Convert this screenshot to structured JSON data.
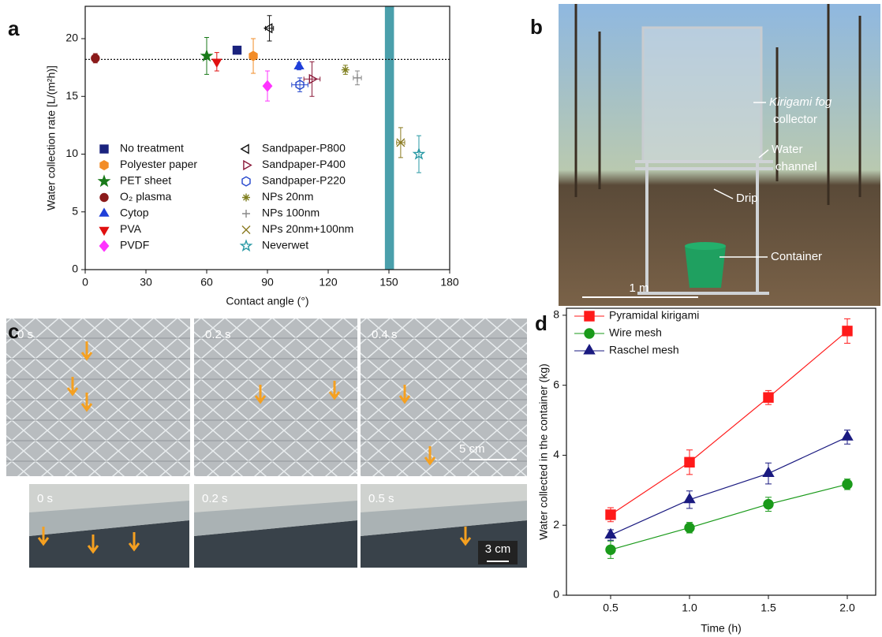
{
  "panel_labels": [
    "a",
    "b",
    "c",
    "d"
  ],
  "chart_data": [
    {
      "type": "scatter",
      "xlabel": "Contact angle (°)",
      "ylabel": "Water collection rate [L/(m²h)]",
      "xlim": [
        0,
        180
      ],
      "xticks": [
        0,
        30,
        60,
        90,
        120,
        150,
        180
      ],
      "ylim": [
        0,
        22.8
      ],
      "yticks": [
        0,
        5,
        10,
        15,
        20
      ],
      "reference_line": 18.2,
      "band": [
        148,
        152.5
      ],
      "band_color": "#4a9fab",
      "series": [
        {
          "name": "No treatment",
          "color": "#1a237e",
          "marker": "square",
          "filled": true,
          "x": [
            75
          ],
          "values": [
            19.0
          ],
          "yerr": [
            0
          ]
        },
        {
          "name": "Polyester paper",
          "color": "#f28c28",
          "marker": "hexagon",
          "filled": true,
          "x": [
            83
          ],
          "values": [
            18.5
          ],
          "yerr": [
            1.5
          ]
        },
        {
          "name": "PET sheet",
          "color": "#1a7a1a",
          "marker": "star",
          "filled": true,
          "x": [
            60
          ],
          "values": [
            18.5
          ],
          "yerr": [
            1.6
          ]
        },
        {
          "name": "O₂ plasma",
          "color": "#8b1a1a",
          "marker": "circle",
          "filled": true,
          "x": [
            5
          ],
          "values": [
            18.3
          ],
          "yerr": [
            0.4
          ]
        },
        {
          "name": "Cytop",
          "color": "#1f3fd9",
          "marker": "triangle-up",
          "filled": true,
          "x": [
            105.6
          ],
          "values": [
            17.6
          ],
          "yerr": [
            0.3
          ]
        },
        {
          "name": "PVA",
          "color": "#e01010",
          "marker": "triangle-down",
          "filled": true,
          "x": [
            65
          ],
          "values": [
            18.0
          ],
          "yerr": [
            0.8
          ]
        },
        {
          "name": "PVDF",
          "color": "#ff33ff",
          "marker": "diamond",
          "filled": true,
          "x": [
            90
          ],
          "values": [
            15.9
          ],
          "yerr": [
            1.3
          ]
        },
        {
          "name": "Sandpaper-P800",
          "color": "#111111",
          "marker": "triangle-left",
          "filled": false,
          "x": [
            91
          ],
          "values": [
            20.9
          ],
          "yerr": [
            1.1
          ],
          "xerr": [
            2
          ]
        },
        {
          "name": "Sandpaper-P400",
          "color": "#8b1a3a",
          "marker": "triangle-right",
          "filled": false,
          "x": [
            112
          ],
          "values": [
            16.5
          ],
          "yerr": [
            1.5
          ],
          "xerr": [
            4
          ]
        },
        {
          "name": "Sandpaper-P220",
          "color": "#2244cc",
          "marker": "hexagon",
          "filled": false,
          "x": [
            106
          ],
          "values": [
            16.0
          ],
          "yerr": [
            0.6
          ],
          "xerr": [
            4
          ]
        },
        {
          "name": "NPs 20nm",
          "color": "#808020",
          "marker": "asterisk",
          "filled": false,
          "x": [
            128.5
          ],
          "values": [
            17.3
          ],
          "yerr": [
            0.4
          ]
        },
        {
          "name": "NPs 100nm",
          "color": "#888888",
          "marker": "plus",
          "filled": false,
          "x": [
            134.4
          ],
          "values": [
            16.6
          ],
          "yerr": [
            0.6
          ],
          "xerr": [
            2
          ]
        },
        {
          "name": "NPs 20nm+100nm",
          "color": "#8a7a20",
          "marker": "cross",
          "filled": false,
          "x": [
            155.8
          ],
          "values": [
            11.0
          ],
          "yerr": [
            1.3
          ],
          "xerr": [
            2
          ]
        },
        {
          "name": "Neverwet",
          "color": "#2a9aa5",
          "marker": "star",
          "filled": false,
          "x": [
            164.8
          ],
          "values": [
            10.0
          ],
          "yerr": [
            1.6
          ]
        }
      ]
    },
    {
      "type": "line",
      "xlabel": "Time (h)",
      "ylabel": "Water collected in the container (kg)",
      "x": [
        0.5,
        1,
        1.5,
        2
      ],
      "xlim": [
        0.22,
        2.18
      ],
      "xticks": [
        0.5,
        {
          "value": 1,
          "label": "1.0"
        },
        1.5,
        {
          "value": 2,
          "label": "2.0"
        }
      ],
      "ylim": [
        0,
        8.2
      ],
      "yticks": [
        0,
        2,
        4,
        6,
        8
      ],
      "series": [
        {
          "name": "Pyramidal kirigami",
          "color": "#ff1a1a",
          "marker": "square",
          "values": [
            2.3,
            3.8,
            5.65,
            7.55
          ],
          "yerr": [
            0.2,
            0.35,
            0.2,
            0.35
          ]
        },
        {
          "name": "Wire mesh",
          "color": "#1a9a1a",
          "marker": "circle",
          "values": [
            1.3,
            1.93,
            2.6,
            3.17
          ],
          "yerr": [
            0.25,
            0.15,
            0.2,
            0.15
          ]
        },
        {
          "name": "Raschel mesh",
          "color": "#1a1a80",
          "marker": "triangle-up",
          "values": [
            1.72,
            2.73,
            3.48,
            4.52
          ],
          "yerr": [
            0.15,
            0.25,
            0.3,
            0.2
          ]
        }
      ]
    }
  ],
  "photo_b": {
    "annotations": [
      [
        "Kirigami fog",
        "collector"
      ],
      [
        "Water",
        "channel"
      ],
      [
        "Drip"
      ],
      [
        "Container"
      ]
    ],
    "scale_bar": "1 m"
  },
  "photo_c": {
    "top_times": [
      "0 s",
      "0.2 s",
      "0.4 s"
    ],
    "top_scale": "5 cm",
    "bottom_times": [
      "0 s",
      "0.2 s",
      "0.5 s"
    ],
    "bottom_scale": "3 cm"
  }
}
